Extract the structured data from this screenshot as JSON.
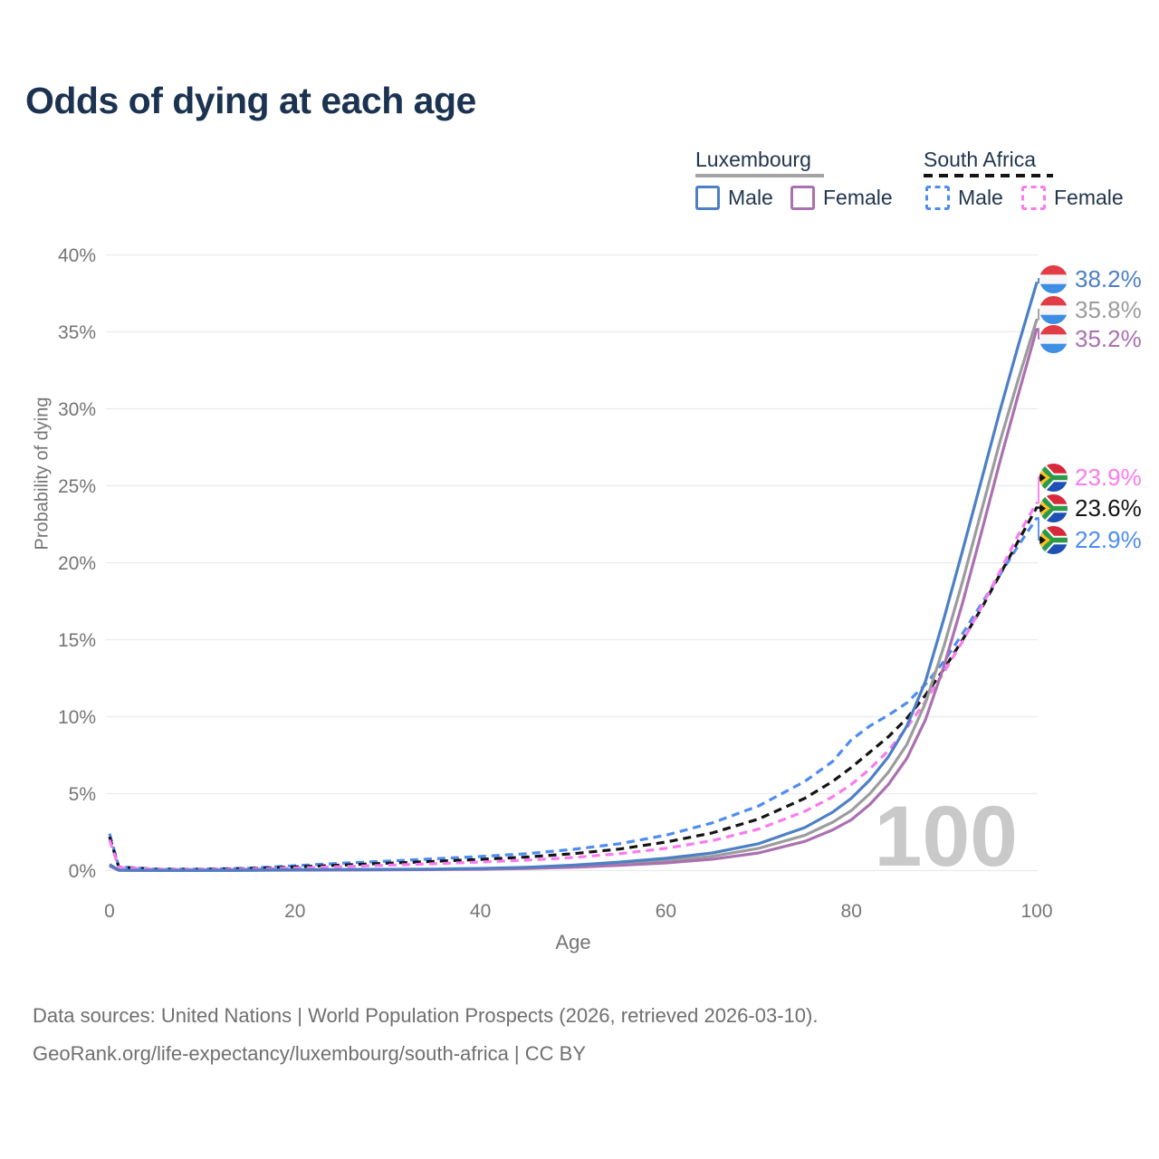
{
  "title": "Odds of dying at each age",
  "legend": {
    "groups": [
      {
        "label": "Luxembourg",
        "line_style": "solid",
        "line_color": "#a3a3a3",
        "items": [
          {
            "label": "Male",
            "color": "#4d7fc4",
            "dashed": false
          },
          {
            "label": "Female",
            "color": "#aa70b0",
            "dashed": false
          }
        ]
      },
      {
        "label": "South Africa",
        "line_style": "dashed",
        "line_color": "#141414",
        "items": [
          {
            "label": "Male",
            "color": "#4e8cf0",
            "dashed": true
          },
          {
            "label": "Female",
            "color": "#f97bef",
            "dashed": true
          }
        ]
      }
    ]
  },
  "chart_data": {
    "type": "line",
    "title": "Odds of dying at each age",
    "xlabel": "Age",
    "ylabel": "Probability of dying",
    "xlim": [
      0,
      100
    ],
    "ylim": [
      0,
      40
    ],
    "x_ticks": [
      0,
      20,
      40,
      60,
      80,
      100
    ],
    "y_ticks": [
      0,
      5,
      10,
      15,
      20,
      25,
      30,
      35,
      40
    ],
    "y_tick_suffix": "%",
    "grid": "horizontal",
    "legend_position": "top-right",
    "watermark": "100",
    "ages": [
      0,
      1,
      5,
      10,
      15,
      20,
      25,
      30,
      35,
      40,
      45,
      50,
      55,
      60,
      65,
      70,
      75,
      78,
      80,
      82,
      84,
      86,
      88,
      90,
      92,
      94,
      96,
      98,
      100
    ],
    "series": [
      {
        "id": "lux-male",
        "name": "Luxembourg Male",
        "color": "#4d7fc4",
        "dashed": false,
        "end_value": 38.2,
        "values": [
          0.4,
          0.03,
          0.01,
          0.01,
          0.03,
          0.06,
          0.07,
          0.08,
          0.1,
          0.14,
          0.22,
          0.35,
          0.55,
          0.8,
          1.15,
          1.75,
          2.8,
          3.8,
          4.7,
          5.9,
          7.4,
          9.4,
          12.3,
          16.4,
          20.8,
          25.3,
          29.8,
          34.1,
          38.2
        ]
      },
      {
        "id": "lux-female",
        "name": "Luxembourg Female",
        "color": "#aa70b0",
        "dashed": false,
        "end_value": 35.2,
        "values": [
          0.3,
          0.02,
          0.01,
          0.01,
          0.02,
          0.03,
          0.035,
          0.045,
          0.065,
          0.09,
          0.14,
          0.22,
          0.34,
          0.5,
          0.74,
          1.15,
          1.9,
          2.65,
          3.3,
          4.3,
          5.6,
          7.3,
          9.8,
          13.3,
          17.4,
          21.9,
          26.5,
          30.9,
          35.2
        ]
      },
      {
        "id": "lux-total",
        "name": "Luxembourg",
        "color": "#9c9c9c",
        "dashed": false,
        "end_value": 35.8,
        "values": [
          0.35,
          0.025,
          0.01,
          0.01,
          0.025,
          0.045,
          0.055,
          0.065,
          0.085,
          0.115,
          0.18,
          0.28,
          0.44,
          0.64,
          0.93,
          1.45,
          2.3,
          3.15,
          3.9,
          5.0,
          6.4,
          8.2,
          10.9,
          14.6,
          18.8,
          23.3,
          27.8,
          31.9,
          35.8
        ]
      },
      {
        "id": "za-male",
        "name": "South Africa Male",
        "color": "#4e8cf0",
        "dashed": true,
        "end_value": 22.9,
        "values": [
          2.4,
          0.25,
          0.1,
          0.1,
          0.16,
          0.32,
          0.48,
          0.62,
          0.77,
          0.92,
          1.1,
          1.38,
          1.75,
          2.3,
          3.1,
          4.2,
          5.8,
          7.1,
          8.5,
          9.4,
          10.1,
          10.9,
          12.1,
          13.6,
          15.4,
          17.3,
          19.2,
          21.1,
          22.9
        ]
      },
      {
        "id": "za-female",
        "name": "South Africa Female",
        "color": "#f97bef",
        "dashed": true,
        "end_value": 23.9,
        "values": [
          2.0,
          0.2,
          0.08,
          0.07,
          0.1,
          0.17,
          0.26,
          0.35,
          0.45,
          0.56,
          0.68,
          0.85,
          1.1,
          1.45,
          1.95,
          2.7,
          3.85,
          4.8,
          5.6,
          6.6,
          7.8,
          9.3,
          11.0,
          12.9,
          14.9,
          17.1,
          19.4,
          21.8,
          23.9
        ]
      },
      {
        "id": "za-total",
        "name": "South Africa",
        "color": "#141414",
        "dashed": true,
        "end_value": 23.6,
        "values": [
          2.2,
          0.22,
          0.09,
          0.085,
          0.13,
          0.24,
          0.36,
          0.48,
          0.6,
          0.73,
          0.88,
          1.1,
          1.4,
          1.85,
          2.45,
          3.35,
          4.7,
          5.8,
          6.7,
          7.7,
          8.7,
          9.9,
          11.4,
          13.1,
          15.0,
          17.0,
          19.2,
          21.4,
          23.6
        ]
      }
    ],
    "end_labels": [
      {
        "series": "lux-male",
        "label": "38.2%",
        "flag": "luxembourg",
        "color": "#4d7fc4"
      },
      {
        "series": "lux-total",
        "label": "35.8%",
        "flag": "luxembourg",
        "color": "#9c9c9c"
      },
      {
        "series": "lux-female",
        "label": "35.2%",
        "flag": "luxembourg",
        "color": "#aa70b0"
      },
      {
        "series": "za-female",
        "label": "23.9%",
        "flag": "south-africa",
        "color": "#f97bef"
      },
      {
        "series": "za-total",
        "label": "23.6%",
        "flag": "south-africa",
        "color": "#141414"
      },
      {
        "series": "za-male",
        "label": "22.9%",
        "flag": "south-africa",
        "color": "#4e8cf0"
      }
    ]
  },
  "footer": {
    "line1": "Data sources: United Nations | World Population Prospects (2026, retrieved 2026-03-10).",
    "line2": "GeoRank.org/life-expectancy/luxembourg/south-africa | CC BY"
  }
}
